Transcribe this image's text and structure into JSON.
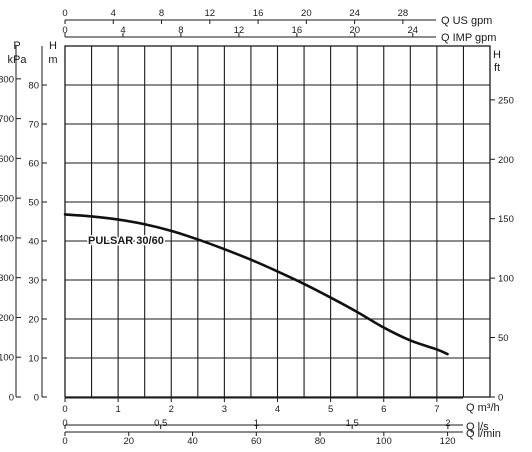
{
  "chart_data": {
    "type": "line",
    "series": [
      {
        "name": "PULSAR 30/60",
        "x": [
          0,
          0.5,
          1,
          1.5,
          2,
          2.5,
          3,
          3.5,
          4,
          4.5,
          5,
          5.5,
          6,
          6.5,
          7,
          7.2
        ],
        "y": [
          46.8,
          46.3,
          45.5,
          44.3,
          42.6,
          40.4,
          37.9,
          35.2,
          32.2,
          29.0,
          25.5,
          21.8,
          17.8,
          14.5,
          12.2,
          11.0
        ]
      }
    ],
    "axes": {
      "x_primary": {
        "label": "Q m³/h",
        "range": [
          0,
          8
        ],
        "ticks": [
          "0",
          "1",
          "2",
          "3",
          "4",
          "5",
          "6",
          "7"
        ]
      },
      "x_ls": {
        "label": "Q l/s",
        "range": [
          0,
          2.22
        ],
        "ticks": [
          "0",
          "0,5",
          "1",
          "1,5",
          "2"
        ],
        "tick_values": [
          0,
          0.5,
          1,
          1.5,
          2
        ]
      },
      "x_lmin": {
        "label": "Q l/min",
        "range": [
          0,
          133.3
        ],
        "ticks": [
          "0",
          "20",
          "40",
          "60",
          "80",
          "100",
          "120"
        ],
        "tick_values": [
          0,
          20,
          40,
          60,
          80,
          100,
          120
        ]
      },
      "x_usgpm": {
        "label": "Q US gpm",
        "range": [
          0,
          35.22
        ],
        "ticks": [
          "0",
          "4",
          "8",
          "12",
          "16",
          "20",
          "24",
          "28"
        ],
        "tick_values": [
          0,
          4,
          8,
          12,
          16,
          20,
          24,
          28
        ]
      },
      "x_impgpm": {
        "label": "Q IMP gpm",
        "range": [
          0,
          29.33
        ],
        "ticks": [
          "0",
          "4",
          "8",
          "12",
          "16",
          "20",
          "24"
        ],
        "tick_values": [
          0,
          4,
          8,
          12,
          16,
          20,
          24
        ]
      },
      "y_head_m": {
        "label_top": "H",
        "label_bottom": "m",
        "range": [
          0,
          90
        ],
        "ticks": [
          "0",
          "10",
          "20",
          "30",
          "40",
          "50",
          "60",
          "70",
          "80"
        ],
        "tick_values": [
          0,
          10,
          20,
          30,
          40,
          50,
          60,
          70,
          80
        ]
      },
      "y_kpa": {
        "label_top": "P",
        "label_bottom": "kPa",
        "range": [
          0,
          882.6
        ],
        "ticks": [
          "0",
          "100",
          "200",
          "300",
          "400",
          "500",
          "600",
          "700",
          "800"
        ],
        "tick_values": [
          0,
          100,
          200,
          300,
          400,
          500,
          600,
          700,
          800
        ]
      },
      "y_ft": {
        "label_top": "H",
        "label_bottom": "ft",
        "range": [
          0,
          295.3
        ],
        "ticks": [
          "0",
          "50",
          "100",
          "150",
          "200",
          "250"
        ],
        "tick_values": [
          0,
          50,
          100,
          150,
          200,
          250
        ]
      }
    },
    "grid": true,
    "curve_label": "PULSAR 30/60"
  }
}
